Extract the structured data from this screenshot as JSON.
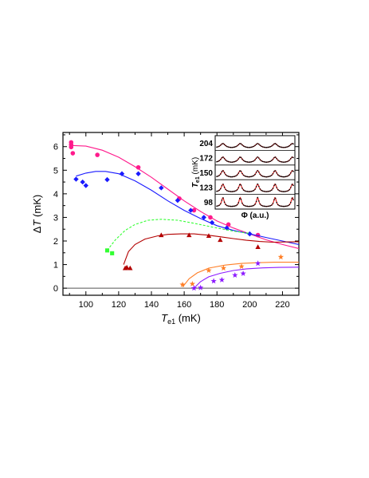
{
  "chart_data": {
    "type": "scatter",
    "title": "",
    "xlabel": {
      "main": "T",
      "sub": "e1",
      "unit": "(mK)"
    },
    "ylabel": {
      "main": "ΔT",
      "unit": "(mK)"
    },
    "xlim": [
      86,
      230
    ],
    "ylim": [
      -0.3,
      6.6
    ],
    "xticks": [
      "100",
      "120",
      "140",
      "160",
      "180",
      "200",
      "220"
    ],
    "yticks": [
      "0",
      "1",
      "2",
      "3",
      "4",
      "5",
      "6"
    ],
    "grid": false,
    "colors": {
      "magenta": "#ff1a8c",
      "blue": "#1a1aff",
      "green": "#33ff33",
      "darkred": "#b30000",
      "orange": "#ff7f27",
      "violet": "#8c1aff"
    },
    "series": [
      {
        "marker": "circle",
        "color": "#ff1a8c",
        "points": [
          [
            91,
            6.18
          ],
          [
            91,
            6.08
          ],
          [
            91,
            5.98
          ],
          [
            92,
            5.72
          ],
          [
            107,
            5.65
          ],
          [
            132,
            5.12
          ],
          [
            157,
            3.8
          ],
          [
            166,
            3.3
          ],
          [
            176,
            3.0
          ],
          [
            187,
            2.7
          ],
          [
            205,
            2.25
          ]
        ],
        "fit": [
          [
            91,
            6.05
          ],
          [
            100,
            6.02
          ],
          [
            110,
            5.85
          ],
          [
            120,
            5.55
          ],
          [
            130,
            5.15
          ],
          [
            140,
            4.7
          ],
          [
            150,
            4.2
          ],
          [
            160,
            3.7
          ],
          [
            170,
            3.25
          ],
          [
            180,
            2.85
          ],
          [
            190,
            2.55
          ],
          [
            200,
            2.3
          ],
          [
            210,
            2.05
          ],
          [
            220,
            1.85
          ],
          [
            230,
            1.68
          ]
        ]
      },
      {
        "marker": "diamond",
        "color": "#1a1aff",
        "points": [
          [
            94,
            4.62
          ],
          [
            98,
            4.5
          ],
          [
            100,
            4.35
          ],
          [
            113,
            4.6
          ],
          [
            122,
            4.85
          ],
          [
            132,
            4.85
          ],
          [
            146,
            4.25
          ],
          [
            156,
            3.72
          ],
          [
            164,
            3.3
          ],
          [
            172,
            3.0
          ],
          [
            177,
            2.78
          ],
          [
            186,
            2.55
          ],
          [
            200,
            2.3
          ]
        ],
        "fit": [
          [
            94,
            4.75
          ],
          [
            100,
            4.88
          ],
          [
            106,
            4.95
          ],
          [
            112,
            4.95
          ],
          [
            120,
            4.85
          ],
          [
            130,
            4.55
          ],
          [
            140,
            4.15
          ],
          [
            150,
            3.7
          ],
          [
            160,
            3.3
          ],
          [
            170,
            2.95
          ],
          [
            180,
            2.65
          ],
          [
            190,
            2.45
          ],
          [
            200,
            2.3
          ],
          [
            210,
            2.15
          ],
          [
            220,
            2.0
          ],
          [
            230,
            1.85
          ]
        ]
      },
      {
        "marker": "square",
        "color": "#33ff33",
        "points": [
          [
            113,
            1.6
          ],
          [
            116,
            1.48
          ]
        ],
        "fit": [
          [
            113,
            1.6
          ],
          [
            118,
            2.05
          ],
          [
            124,
            2.45
          ],
          [
            130,
            2.7
          ],
          [
            138,
            2.88
          ],
          [
            146,
            2.92
          ],
          [
            156,
            2.88
          ],
          [
            166,
            2.75
          ],
          [
            178,
            2.58
          ],
          [
            190,
            2.42
          ],
          [
            200,
            2.32
          ]
        ]
      },
      {
        "marker": "triangle",
        "color": "#b30000",
        "points": [
          [
            124,
            0.85
          ],
          [
            125,
            0.88
          ],
          [
            127,
            0.85
          ],
          [
            146,
            2.25
          ],
          [
            163,
            2.25
          ],
          [
            175,
            2.22
          ],
          [
            182,
            2.05
          ],
          [
            205,
            1.75
          ]
        ],
        "fit": [
          [
            123,
            1.0
          ],
          [
            126,
            1.55
          ],
          [
            130,
            1.85
          ],
          [
            136,
            2.08
          ],
          [
            144,
            2.22
          ],
          [
            150,
            2.28
          ],
          [
            158,
            2.3
          ],
          [
            166,
            2.3
          ],
          [
            174,
            2.25
          ],
          [
            182,
            2.18
          ],
          [
            190,
            2.1
          ],
          [
            198,
            2.03
          ],
          [
            206,
            1.98
          ],
          [
            214,
            1.95
          ],
          [
            222,
            1.96
          ],
          [
            230,
            1.97
          ]
        ]
      },
      {
        "marker": "star",
        "color": "#ff7f27",
        "points": [
          [
            159,
            0.15
          ],
          [
            165,
            0.18
          ],
          [
            175,
            0.75
          ],
          [
            184,
            0.85
          ],
          [
            195,
            0.92
          ],
          [
            219,
            1.32
          ]
        ],
        "fit": [
          [
            159,
            0.05
          ],
          [
            163,
            0.4
          ],
          [
            168,
            0.65
          ],
          [
            175,
            0.85
          ],
          [
            185,
            0.98
          ],
          [
            195,
            1.05
          ],
          [
            205,
            1.08
          ],
          [
            215,
            1.1
          ],
          [
            230,
            1.1
          ]
        ]
      },
      {
        "marker": "star",
        "color": "#8c1aff",
        "points": [
          [
            166,
            0.0
          ],
          [
            170,
            0.02
          ],
          [
            178,
            0.3
          ],
          [
            183,
            0.35
          ],
          [
            191,
            0.55
          ],
          [
            196,
            0.62
          ],
          [
            205,
            1.05
          ]
        ],
        "fit": [
          [
            166,
            0.0
          ],
          [
            170,
            0.28
          ],
          [
            175,
            0.48
          ],
          [
            182,
            0.63
          ],
          [
            190,
            0.75
          ],
          [
            198,
            0.82
          ],
          [
            208,
            0.86
          ],
          [
            218,
            0.88
          ],
          [
            230,
            0.89
          ]
        ]
      }
    ],
    "inset": {
      "ylabel": {
        "main": "T",
        "sub": "e1",
        "unit": "(mK)"
      },
      "xlabel": "Φ (a.u.)",
      "traces": [
        "204",
        "172",
        "150",
        "123",
        "98"
      ],
      "data_color": "#000000",
      "fit_color": "#e02020"
    }
  }
}
